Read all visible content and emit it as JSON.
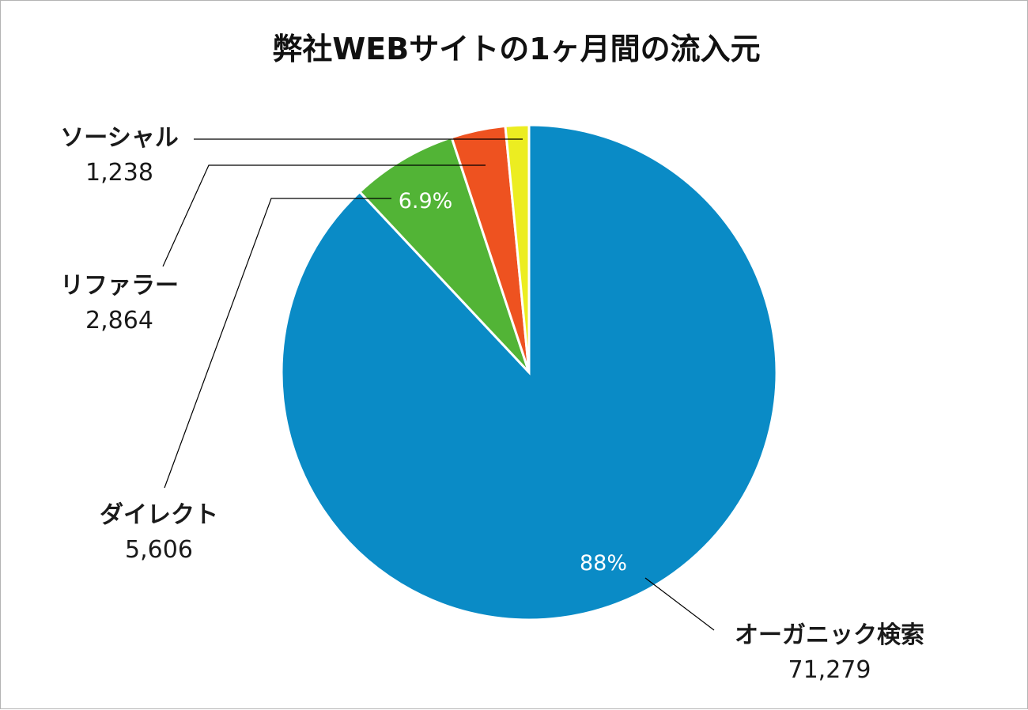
{
  "chart_data": {
    "type": "pie",
    "title": "弊社WEBサイトの1ヶ月間の流入元",
    "slices": [
      {
        "name": "オーガニック検索",
        "value": 71279,
        "value_label": "71,279",
        "percent_label": "88%",
        "color": "#0a8bc6"
      },
      {
        "name": "ダイレクト",
        "value": 5606,
        "value_label": "5,606",
        "percent_label": "6.9%",
        "color": "#52b436"
      },
      {
        "name": "リファラー",
        "value": 2864,
        "value_label": "2,864",
        "percent_label": "",
        "color": "#ee5220"
      },
      {
        "name": "ソーシャル",
        "value": 1238,
        "value_label": "1,238",
        "percent_label": "",
        "color": "#eced21"
      }
    ],
    "start_angle": "12 o'clock",
    "direction": "counterclockwise from largest slice"
  },
  "colors": {
    "background": "#ffffff",
    "border": "#b4b4b4",
    "slice_border": "#ffffff"
  }
}
